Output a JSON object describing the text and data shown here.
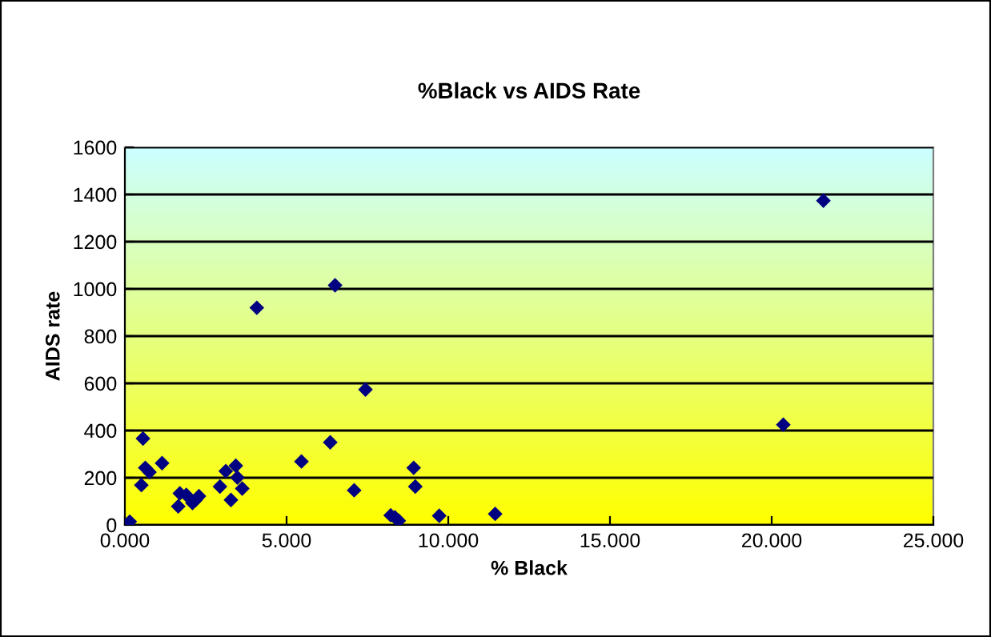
{
  "chart_data": {
    "type": "scatter",
    "title": "%Black vs AIDS Rate",
    "xlabel": "% Black",
    "ylabel": "AIDS rate",
    "x": [
      0.15,
      0.56,
      0.51,
      0.63,
      0.76,
      1.15,
      1.65,
      1.7,
      1.9,
      2.09,
      2.19,
      2.29,
      2.94,
      3.12,
      3.28,
      3.43,
      3.48,
      3.63,
      4.08,
      5.46,
      6.35,
      6.5,
      7.09,
      7.44,
      8.22,
      8.35,
      8.47,
      8.93,
      8.98,
      9.72,
      11.45,
      20.36,
      21.6
    ],
    "series": [
      {
        "color": "#000080",
        "values": [
          14,
          366,
          169,
          242,
          224,
          262,
          79,
          134,
          127,
          93,
          106,
          122,
          163,
          228,
          106,
          251,
          201,
          154,
          920,
          269,
          350,
          1015,
          147,
          574,
          41,
          32,
          18,
          242,
          163,
          39,
          47,
          425,
          1374
        ]
      }
    ],
    "marker": "diamond",
    "grid": "y",
    "xlim": [
      0,
      25
    ],
    "xticks": [
      {
        "value": 0,
        "label": "0.000"
      },
      {
        "value": 5,
        "label": "5.000"
      },
      {
        "value": 10,
        "label": "10.000"
      },
      {
        "value": 15,
        "label": "15.000"
      },
      {
        "value": 20,
        "label": "20.000"
      },
      {
        "value": 25,
        "label": "25.000"
      }
    ],
    "ylim": [
      0,
      1600
    ],
    "yticks": [
      0,
      200,
      400,
      600,
      800,
      1000,
      1200,
      1400,
      1600
    ]
  }
}
